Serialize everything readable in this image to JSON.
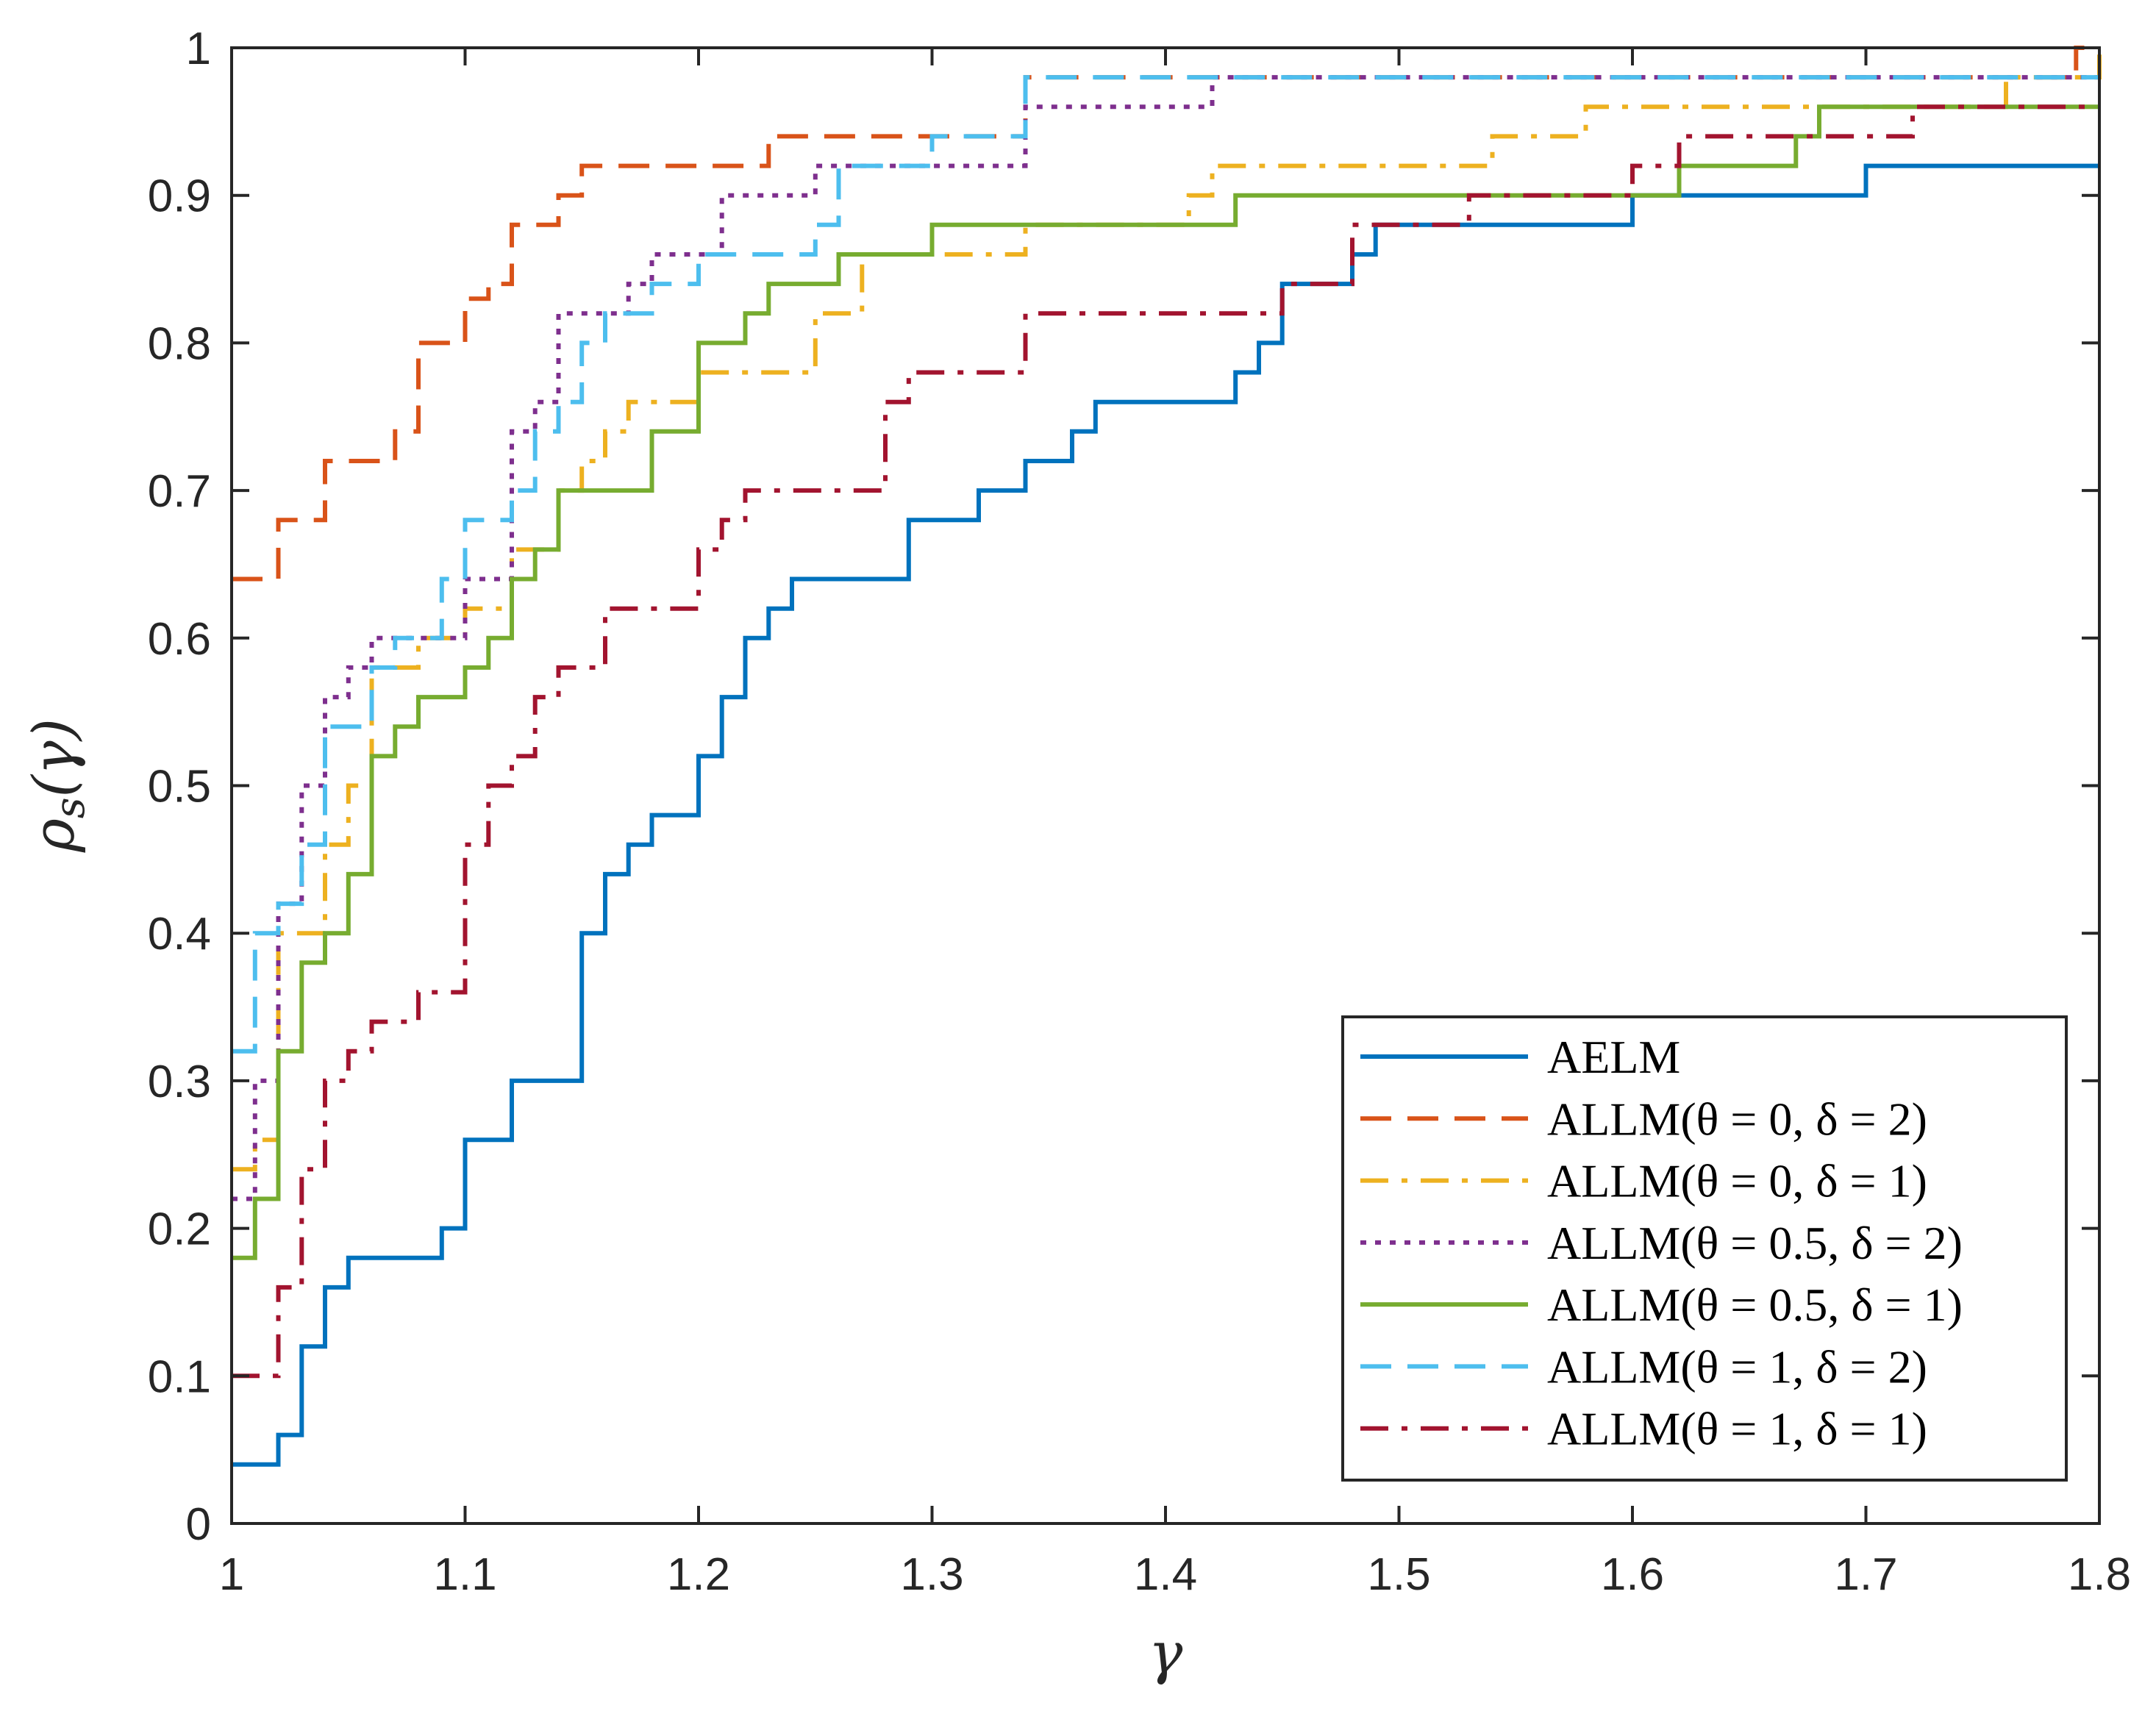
{
  "chart_data": {
    "type": "line",
    "step": true,
    "title": "",
    "xlabel": "γ",
    "ylabel": "ρs(γ)",
    "xlim": [
      1,
      1.8
    ],
    "ylim": [
      0,
      1
    ],
    "xticks": [
      1,
      1.1,
      1.2,
      1.3,
      1.4,
      1.5,
      1.6,
      1.7,
      1.8
    ],
    "xtick_labels": [
      "1",
      "1.1",
      "1.2",
      "1.3",
      "1.4",
      "1.5",
      "1.6",
      "1.7",
      "1.8"
    ],
    "yticks": [
      0,
      0.1,
      0.2,
      0.3,
      0.4,
      0.5,
      0.6,
      0.7,
      0.8,
      0.9,
      1
    ],
    "ytick_labels": [
      "0",
      "0.1",
      "0.2",
      "0.3",
      "0.4",
      "0.5",
      "0.6",
      "0.7",
      "0.8",
      "0.9",
      "1"
    ],
    "grid": false,
    "legend_position": "bottom-right",
    "series": [
      {
        "name": "AELM",
        "color": "#0072BD",
        "dash": "solid",
        "steps": [
          [
            1,
            0.04
          ],
          [
            1.02,
            0.06
          ],
          [
            1.03,
            0.12
          ],
          [
            1.04,
            0.16
          ],
          [
            1.05,
            0.18
          ],
          [
            1.09,
            0.2
          ],
          [
            1.1,
            0.26
          ],
          [
            1.12,
            0.3
          ],
          [
            1.15,
            0.4
          ],
          [
            1.16,
            0.44
          ],
          [
            1.17,
            0.46
          ],
          [
            1.18,
            0.48
          ],
          [
            1.2,
            0.52
          ],
          [
            1.21,
            0.56
          ],
          [
            1.22,
            0.6
          ],
          [
            1.23,
            0.62
          ],
          [
            1.24,
            0.64
          ],
          [
            1.29,
            0.68
          ],
          [
            1.32,
            0.7
          ],
          [
            1.34,
            0.72
          ],
          [
            1.36,
            0.74
          ],
          [
            1.37,
            0.76
          ],
          [
            1.43,
            0.78
          ],
          [
            1.44,
            0.8
          ],
          [
            1.45,
            0.84
          ],
          [
            1.48,
            0.86
          ],
          [
            1.49,
            0.88
          ],
          [
            1.6,
            0.9
          ],
          [
            1.7,
            0.92
          ],
          [
            1.8,
            0.92
          ]
        ]
      },
      {
        "name": "ALLM(θ = 0, δ = 2)",
        "color": "#D95319",
        "dash": "dashed",
        "steps": [
          [
            1,
            0.64
          ],
          [
            1.02,
            0.68
          ],
          [
            1.04,
            0.72
          ],
          [
            1.07,
            0.74
          ],
          [
            1.08,
            0.8
          ],
          [
            1.09,
            0.8
          ],
          [
            1.1,
            0.83
          ],
          [
            1.11,
            0.84
          ],
          [
            1.12,
            0.88
          ],
          [
            1.14,
            0.9
          ],
          [
            1.15,
            0.92
          ],
          [
            1.23,
            0.94
          ],
          [
            1.34,
            0.98
          ],
          [
            1.79,
            1
          ],
          [
            1.8,
            1
          ]
        ]
      },
      {
        "name": "ALLM(θ = 0, δ = 1)",
        "color": "#EDB120",
        "dash": "dashdot",
        "steps": [
          [
            1,
            0.24
          ],
          [
            1.01,
            0.26
          ],
          [
            1.02,
            0.4
          ],
          [
            1.04,
            0.46
          ],
          [
            1.05,
            0.5
          ],
          [
            1.06,
            0.58
          ],
          [
            1.08,
            0.6
          ],
          [
            1.1,
            0.62
          ],
          [
            1.12,
            0.66
          ],
          [
            1.14,
            0.7
          ],
          [
            1.15,
            0.72
          ],
          [
            1.16,
            0.74
          ],
          [
            1.17,
            0.76
          ],
          [
            1.2,
            0.78
          ],
          [
            1.25,
            0.82
          ],
          [
            1.27,
            0.86
          ],
          [
            1.34,
            0.88
          ],
          [
            1.41,
            0.9
          ],
          [
            1.42,
            0.92
          ],
          [
            1.54,
            0.94
          ],
          [
            1.58,
            0.96
          ],
          [
            1.76,
            0.98
          ],
          [
            1.8,
            1
          ],
          [
            1.8,
            1
          ]
        ]
      },
      {
        "name": "ALLM(θ = 0.5, δ = 2)",
        "color": "#7E2F8E",
        "dash": "dotted",
        "steps": [
          [
            1,
            0.22
          ],
          [
            1.01,
            0.3
          ],
          [
            1.02,
            0.42
          ],
          [
            1.03,
            0.5
          ],
          [
            1.04,
            0.56
          ],
          [
            1.05,
            0.58
          ],
          [
            1.06,
            0.6
          ],
          [
            1.08,
            0.6
          ],
          [
            1.1,
            0.64
          ],
          [
            1.12,
            0.74
          ],
          [
            1.13,
            0.76
          ],
          [
            1.14,
            0.82
          ],
          [
            1.17,
            0.84
          ],
          [
            1.18,
            0.86
          ],
          [
            1.21,
            0.9
          ],
          [
            1.22,
            0.9
          ],
          [
            1.25,
            0.92
          ],
          [
            1.34,
            0.96
          ],
          [
            1.42,
            0.98
          ],
          [
            1.8,
            0.98
          ]
        ]
      },
      {
        "name": "ALLM(θ = 0.5, δ = 1)",
        "color": "#77AC30",
        "dash": "solid",
        "steps": [
          [
            1,
            0.18
          ],
          [
            1.01,
            0.22
          ],
          [
            1.02,
            0.32
          ],
          [
            1.03,
            0.38
          ],
          [
            1.04,
            0.4
          ],
          [
            1.05,
            0.44
          ],
          [
            1.06,
            0.52
          ],
          [
            1.07,
            0.54
          ],
          [
            1.08,
            0.56
          ],
          [
            1.1,
            0.58
          ],
          [
            1.11,
            0.6
          ],
          [
            1.12,
            0.64
          ],
          [
            1.13,
            0.66
          ],
          [
            1.14,
            0.7
          ],
          [
            1.18,
            0.74
          ],
          [
            1.2,
            0.8
          ],
          [
            1.22,
            0.82
          ],
          [
            1.23,
            0.84
          ],
          [
            1.26,
            0.86
          ],
          [
            1.3,
            0.88
          ],
          [
            1.43,
            0.9
          ],
          [
            1.62,
            0.92
          ],
          [
            1.67,
            0.94
          ],
          [
            1.68,
            0.96
          ],
          [
            1.8,
            0.96
          ]
        ]
      },
      {
        "name": "ALLM(θ = 1, δ = 2)",
        "color": "#4DBEEE",
        "dash": "dashed",
        "steps": [
          [
            1,
            0.32
          ],
          [
            1.01,
            0.4
          ],
          [
            1.02,
            0.42
          ],
          [
            1.03,
            0.46
          ],
          [
            1.04,
            0.54
          ],
          [
            1.06,
            0.58
          ],
          [
            1.07,
            0.6
          ],
          [
            1.09,
            0.64
          ],
          [
            1.1,
            0.68
          ],
          [
            1.12,
            0.7
          ],
          [
            1.13,
            0.74
          ],
          [
            1.14,
            0.76
          ],
          [
            1.15,
            0.8
          ],
          [
            1.16,
            0.82
          ],
          [
            1.18,
            0.84
          ],
          [
            1.2,
            0.86
          ],
          [
            1.25,
            0.88
          ],
          [
            1.26,
            0.92
          ],
          [
            1.3,
            0.94
          ],
          [
            1.34,
            0.98
          ],
          [
            1.8,
            0.98
          ]
        ]
      },
      {
        "name": "ALLM(θ = 1, δ = 1)",
        "color": "#A2142F",
        "dash": "dashdot",
        "steps": [
          [
            1,
            0.1
          ],
          [
            1.02,
            0.16
          ],
          [
            1.03,
            0.24
          ],
          [
            1.04,
            0.3
          ],
          [
            1.05,
            0.32
          ],
          [
            1.06,
            0.34
          ],
          [
            1.08,
            0.36
          ],
          [
            1.1,
            0.46
          ],
          [
            1.11,
            0.5
          ],
          [
            1.12,
            0.52
          ],
          [
            1.13,
            0.56
          ],
          [
            1.14,
            0.58
          ],
          [
            1.16,
            0.62
          ],
          [
            1.2,
            0.66
          ],
          [
            1.21,
            0.68
          ],
          [
            1.22,
            0.7
          ],
          [
            1.28,
            0.76
          ],
          [
            1.29,
            0.78
          ],
          [
            1.34,
            0.82
          ],
          [
            1.45,
            0.84
          ],
          [
            1.48,
            0.88
          ],
          [
            1.53,
            0.9
          ],
          [
            1.6,
            0.92
          ],
          [
            1.62,
            0.94
          ],
          [
            1.72,
            0.96
          ],
          [
            1.8,
            0.96
          ]
        ]
      }
    ]
  }
}
